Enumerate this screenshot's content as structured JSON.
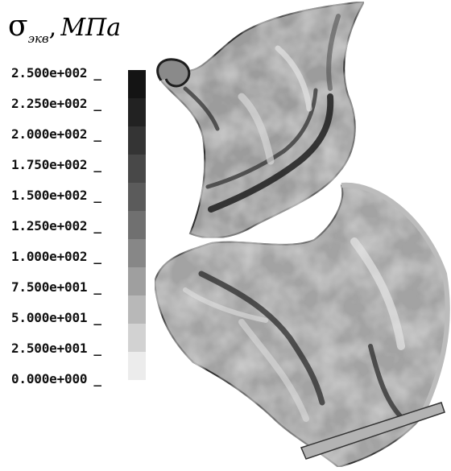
{
  "title": {
    "symbol": "σ",
    "subscript": "экв",
    "separator": ",",
    "unit": "МПа"
  },
  "legend": {
    "labels": [
      "2.500e+002",
      "2.250e+002",
      "2.000e+002",
      "1.750e+002",
      "1.500e+002",
      "1.250e+002",
      "1.000e+002",
      "7.500e+001",
      "5.000e+001",
      "2.500e+001",
      "0.000e+000"
    ],
    "tick_mark": "_",
    "bands": [
      "#141414",
      "#222222",
      "#343434",
      "#484848",
      "#5b5b5b",
      "#707070",
      "#878787",
      "#9f9f9f",
      "#b8b8b8",
      "#d2d2d2",
      "#ececec"
    ]
  }
}
